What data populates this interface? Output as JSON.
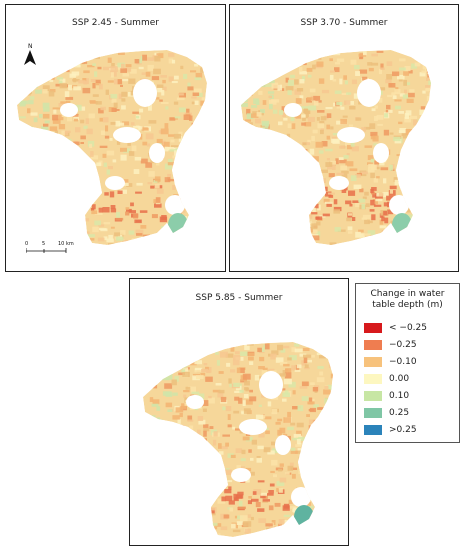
{
  "panels": [
    {
      "title": "SSP 2.45 - Summer"
    },
    {
      "title": "SSP 3.70 - Summer"
    },
    {
      "title": "SSP 5.85 - Summer"
    }
  ],
  "north_arrow": {
    "label": "N"
  },
  "scale_bar": {
    "labels": [
      "0",
      "5",
      "10 km"
    ]
  },
  "legend": {
    "title": "Change in water table depth (m)",
    "items": [
      {
        "label": "< −0.25",
        "color": "#d7191c"
      },
      {
        "label": "−0.25",
        "color": "#ef7d50"
      },
      {
        "label": "−0.10",
        "color": "#f7c27c"
      },
      {
        "label": "0.00",
        "color": "#fdf7c0"
      },
      {
        "label": "0.10",
        "color": "#c7e6a4"
      },
      {
        "label": "0.25",
        "color": "#7fc6a5"
      },
      {
        "label": ">0.25",
        "color": "#2b83ba"
      }
    ]
  }
}
